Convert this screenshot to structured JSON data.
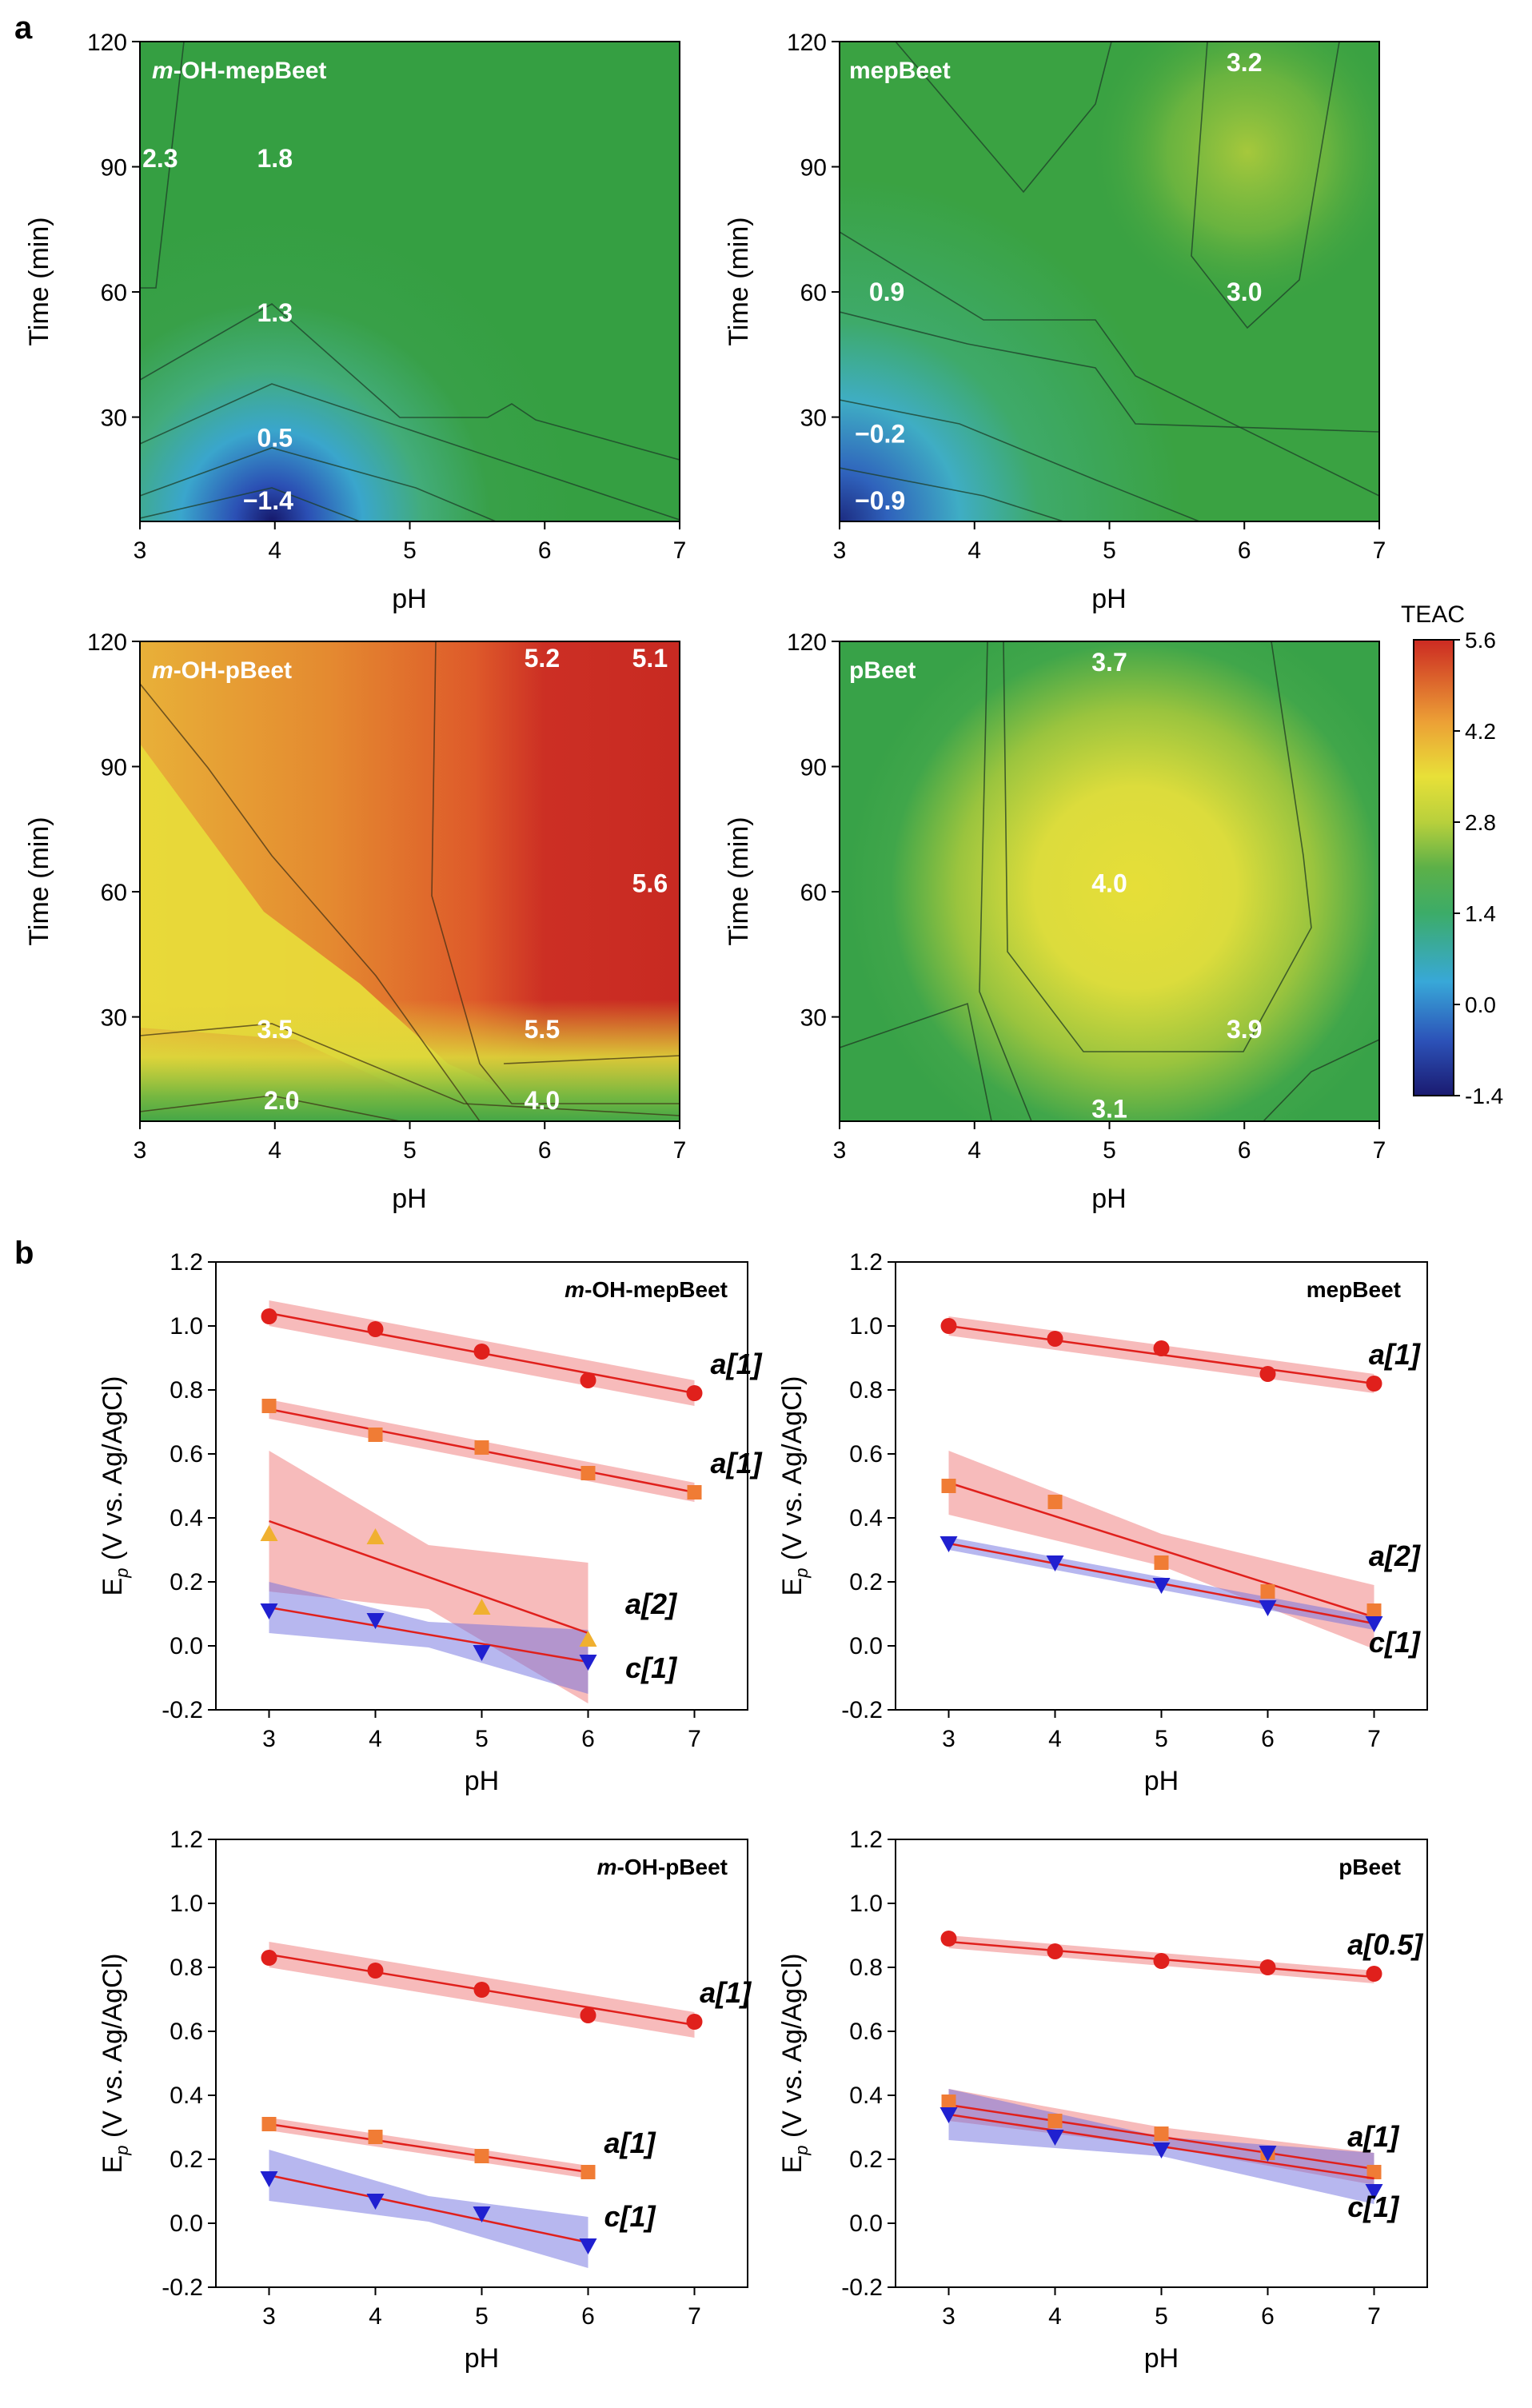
{
  "panel_labels": {
    "a": "a",
    "b": "b"
  },
  "colorbar": {
    "title": "TEAC",
    "min": -1.4,
    "max": 5.6,
    "ticks": [
      "5.6",
      "4.2",
      "2.8",
      "1.4",
      "0.0",
      "-1.4"
    ]
  },
  "chart_data": [
    {
      "id": "c1",
      "type": "heatmap",
      "title": "m-OH-mepBeet",
      "xlabel": "pH",
      "ylabel": "Time (min)",
      "xlim": [
        3,
        7
      ],
      "ylim": [
        5,
        120
      ],
      "xticks": [
        "3",
        "4",
        "5",
        "6",
        "7"
      ],
      "yticks": [
        "30",
        "60",
        "90",
        "120"
      ],
      "contour_labels": [
        {
          "text": "2.3",
          "x": 3.15,
          "y": 92
        },
        {
          "text": "1.8",
          "x": 4.0,
          "y": 92
        },
        {
          "text": "1.3",
          "x": 4.0,
          "y": 55
        },
        {
          "text": "0.5",
          "x": 4.0,
          "y": 25
        },
        {
          "text": "−1.4",
          "x": 3.95,
          "y": 10
        }
      ]
    },
    {
      "id": "c2",
      "type": "heatmap",
      "title": "mepBeet",
      "xlabel": "pH",
      "ylabel": "Time (min)",
      "xlim": [
        3,
        7
      ],
      "ylim": [
        5,
        120
      ],
      "xticks": [
        "3",
        "4",
        "5",
        "6",
        "7"
      ],
      "yticks": [
        "30",
        "60",
        "90",
        "120"
      ],
      "contour_labels": [
        {
          "text": "3.2",
          "x": 6.0,
          "y": 115
        },
        {
          "text": "3.0",
          "x": 6.0,
          "y": 60
        },
        {
          "text": "0.9",
          "x": 3.35,
          "y": 60
        },
        {
          "text": "−0.2",
          "x": 3.3,
          "y": 26
        },
        {
          "text": "−0.9",
          "x": 3.3,
          "y": 10
        }
      ]
    },
    {
      "id": "c3",
      "type": "heatmap",
      "title": "m-OH-pBeet",
      "xlabel": "pH",
      "ylabel": "Time (min)",
      "xlim": [
        3,
        7
      ],
      "ylim": [
        5,
        120
      ],
      "xticks": [
        "3",
        "4",
        "5",
        "6",
        "7"
      ],
      "yticks": [
        "30",
        "60",
        "90",
        "120"
      ],
      "contour_labels": [
        {
          "text": "5.2",
          "x": 5.98,
          "y": 116
        },
        {
          "text": "5.1",
          "x": 6.78,
          "y": 116
        },
        {
          "text": "5.6",
          "x": 6.78,
          "y": 62
        },
        {
          "text": "3.5",
          "x": 4.0,
          "y": 27
        },
        {
          "text": "5.5",
          "x": 5.98,
          "y": 27
        },
        {
          "text": "2.0",
          "x": 4.05,
          "y": 10
        },
        {
          "text": "4.0",
          "x": 5.98,
          "y": 10
        }
      ]
    },
    {
      "id": "c4",
      "type": "heatmap",
      "title": "pBeet",
      "xlabel": "pH",
      "ylabel": "Time (min)",
      "xlim": [
        3,
        7
      ],
      "ylim": [
        5,
        120
      ],
      "xticks": [
        "3",
        "4",
        "5",
        "6",
        "7"
      ],
      "yticks": [
        "30",
        "60",
        "90",
        "120"
      ],
      "contour_labels": [
        {
          "text": "3.7",
          "x": 5.0,
          "y": 115
        },
        {
          "text": "4.0",
          "x": 5.0,
          "y": 62
        },
        {
          "text": "3.9",
          "x": 6.0,
          "y": 27
        },
        {
          "text": "3.1",
          "x": 5.0,
          "y": 8
        }
      ]
    },
    {
      "id": "c5",
      "type": "scatter",
      "title": "m-OH-mepBeet",
      "xlabel": "pH",
      "ylabel": "E_p (V vs. Ag/AgCl)",
      "xlim": [
        2.5,
        7.5
      ],
      "ylim": [
        -0.2,
        1.2
      ],
      "xticks": [
        "3",
        "4",
        "5",
        "6",
        "7"
      ],
      "yticks": [
        "-0.2",
        "0.0",
        "0.2",
        "0.4",
        "0.6",
        "0.8",
        "1.0",
        "1.2"
      ],
      "series": [
        {
          "name": "a[1]",
          "marker": "circle",
          "color": "#e0201c",
          "band_color": "#f07878",
          "x": [
            3,
            4,
            5,
            6,
            7
          ],
          "y": [
            1.03,
            0.99,
            0.92,
            0.83,
            0.79
          ],
          "fit": [
            1.04,
            0.79
          ],
          "band": 0.04,
          "label_at": [
            7.15,
            0.85
          ]
        },
        {
          "name": "a[1]",
          "marker": "square",
          "color": "#f07c35",
          "band_color": "#f07878",
          "x": [
            3,
            4,
            5,
            6,
            7
          ],
          "y": [
            0.75,
            0.66,
            0.62,
            0.54,
            0.48
          ],
          "fit": [
            0.74,
            0.48
          ],
          "band": 0.03,
          "label_at": [
            7.15,
            0.54
          ]
        },
        {
          "name": "a[2]",
          "marker": "triangle-up",
          "color": "#f0b030",
          "band_color": "#f07878",
          "x": [
            3,
            4,
            5,
            6
          ],
          "y": [
            0.35,
            0.34,
            0.12,
            0.02
          ],
          "fit": [
            0.39,
            0.04
          ],
          "band": [
            0.22,
            0.1,
            0.22
          ],
          "label_at": [
            6.35,
            0.1
          ]
        },
        {
          "name": "c[1]",
          "marker": "triangle-down",
          "color": "#2020d0",
          "band_color": "#7070e0",
          "x": [
            3,
            4,
            5,
            6
          ],
          "y": [
            0.11,
            0.08,
            -0.02,
            -0.05
          ],
          "fit": [
            0.12,
            -0.05
          ],
          "band": [
            0.08,
            0.04,
            0.1
          ],
          "label_at": [
            6.35,
            -0.1
          ]
        }
      ]
    },
    {
      "id": "c6",
      "type": "scatter",
      "title": "mepBeet",
      "xlabel": "pH",
      "ylabel": "E_p (V vs. Ag/AgCl)",
      "xlim": [
        2.5,
        7.5
      ],
      "ylim": [
        -0.2,
        1.2
      ],
      "xticks": [
        "3",
        "4",
        "5",
        "6",
        "7"
      ],
      "yticks": [
        "-0.2",
        "0.0",
        "0.2",
        "0.4",
        "0.6",
        "0.8",
        "1.0",
        "1.2"
      ],
      "series": [
        {
          "name": "a[1]",
          "marker": "circle",
          "color": "#e0201c",
          "band_color": "#f07878",
          "x": [
            3,
            4,
            5,
            6,
            7
          ],
          "y": [
            1.0,
            0.96,
            0.93,
            0.85,
            0.82
          ],
          "fit": [
            1.0,
            0.82
          ],
          "band": 0.03,
          "label_at": [
            6.95,
            0.88
          ]
        },
        {
          "name": "a[2]",
          "marker": "square",
          "color": "#f07c35",
          "band_color": "#f07878",
          "x": [
            3,
            4,
            5,
            6,
            7
          ],
          "y": [
            0.5,
            0.45,
            0.26,
            0.17,
            0.11
          ],
          "fit": [
            0.51,
            0.09
          ],
          "band": [
            0.1,
            0.05,
            0.1
          ],
          "label_at": [
            6.95,
            0.25
          ]
        },
        {
          "name": "c[1]",
          "marker": "triangle-down",
          "color": "#2020d0",
          "band_color": "#7070e0",
          "x": [
            3,
            4,
            5,
            6,
            7
          ],
          "y": [
            0.32,
            0.26,
            0.19,
            0.12,
            0.07
          ],
          "fit": [
            0.32,
            0.07
          ],
          "band": 0.02,
          "label_at": [
            6.95,
            -0.02
          ]
        }
      ]
    },
    {
      "id": "c7",
      "type": "scatter",
      "title": "m-OH-pBeet",
      "xlabel": "pH",
      "ylabel": "E_p (V vs. Ag/AgCl)",
      "xlim": [
        2.5,
        7.5
      ],
      "ylim": [
        -0.2,
        1.2
      ],
      "xticks": [
        "3",
        "4",
        "5",
        "6",
        "7"
      ],
      "yticks": [
        "-0.2",
        "0.0",
        "0.2",
        "0.4",
        "0.6",
        "0.8",
        "1.0",
        "1.2"
      ],
      "series": [
        {
          "name": "a[1]",
          "marker": "circle",
          "color": "#e0201c",
          "band_color": "#f07878",
          "x": [
            3,
            4,
            5,
            6,
            7
          ],
          "y": [
            0.83,
            0.79,
            0.73,
            0.65,
            0.63
          ],
          "fit": [
            0.84,
            0.62
          ],
          "band": 0.04,
          "label_at": [
            7.05,
            0.69
          ]
        },
        {
          "name": "a[1]",
          "marker": "square",
          "color": "#f07c35",
          "band_color": "#f07878",
          "x": [
            3,
            4,
            5,
            6
          ],
          "y": [
            0.31,
            0.27,
            0.21,
            0.16
          ],
          "fit": [
            0.31,
            0.16
          ],
          "band": 0.02,
          "label_at": [
            6.15,
            0.22
          ]
        },
        {
          "name": "c[1]",
          "marker": "triangle-down",
          "color": "#2020d0",
          "band_color": "#7070e0",
          "x": [
            3,
            4,
            5,
            6
          ],
          "y": [
            0.14,
            0.07,
            0.03,
            -0.07
          ],
          "fit": [
            0.15,
            -0.06
          ],
          "band": [
            0.08,
            0.04,
            0.08
          ],
          "label_at": [
            6.15,
            -0.01
          ]
        }
      ]
    },
    {
      "id": "c8",
      "type": "scatter",
      "title": "pBeet",
      "xlabel": "pH",
      "ylabel": "E_p (V vs. Ag/AgCl)",
      "xlim": [
        2.5,
        7.5
      ],
      "ylim": [
        -0.2,
        1.2
      ],
      "xticks": [
        "3",
        "4",
        "5",
        "6",
        "7"
      ],
      "yticks": [
        "-0.2",
        "0.0",
        "0.2",
        "0.4",
        "0.6",
        "0.8",
        "1.0",
        "1.2"
      ],
      "series": [
        {
          "name": "a[0.5]",
          "marker": "circle",
          "color": "#e0201c",
          "band_color": "#f07878",
          "x": [
            3,
            4,
            5,
            6,
            7
          ],
          "y": [
            0.89,
            0.85,
            0.82,
            0.8,
            0.78
          ],
          "fit": [
            0.88,
            0.77
          ],
          "band": 0.02,
          "label_at": [
            6.75,
            0.84
          ]
        },
        {
          "name": "a[1]",
          "marker": "square",
          "color": "#f07c35",
          "band_color": "#f07878",
          "x": [
            3,
            4,
            5,
            6,
            7
          ],
          "y": [
            0.38,
            0.32,
            0.28,
            0.22,
            0.16
          ],
          "fit": [
            0.37,
            0.17
          ],
          "band": [
            0.05,
            0.03,
            0.05
          ],
          "label_at": [
            6.75,
            0.24
          ]
        },
        {
          "name": "c[1]",
          "marker": "triangle-down",
          "color": "#2020d0",
          "band_color": "#7070e0",
          "x": [
            3,
            4,
            5,
            6,
            7
          ],
          "y": [
            0.34,
            0.27,
            0.23,
            0.22,
            0.1
          ],
          "fit": [
            0.34,
            0.14
          ],
          "band": [
            0.08,
            0.03,
            0.08
          ],
          "label_at": [
            6.75,
            0.02
          ]
        }
      ]
    }
  ]
}
